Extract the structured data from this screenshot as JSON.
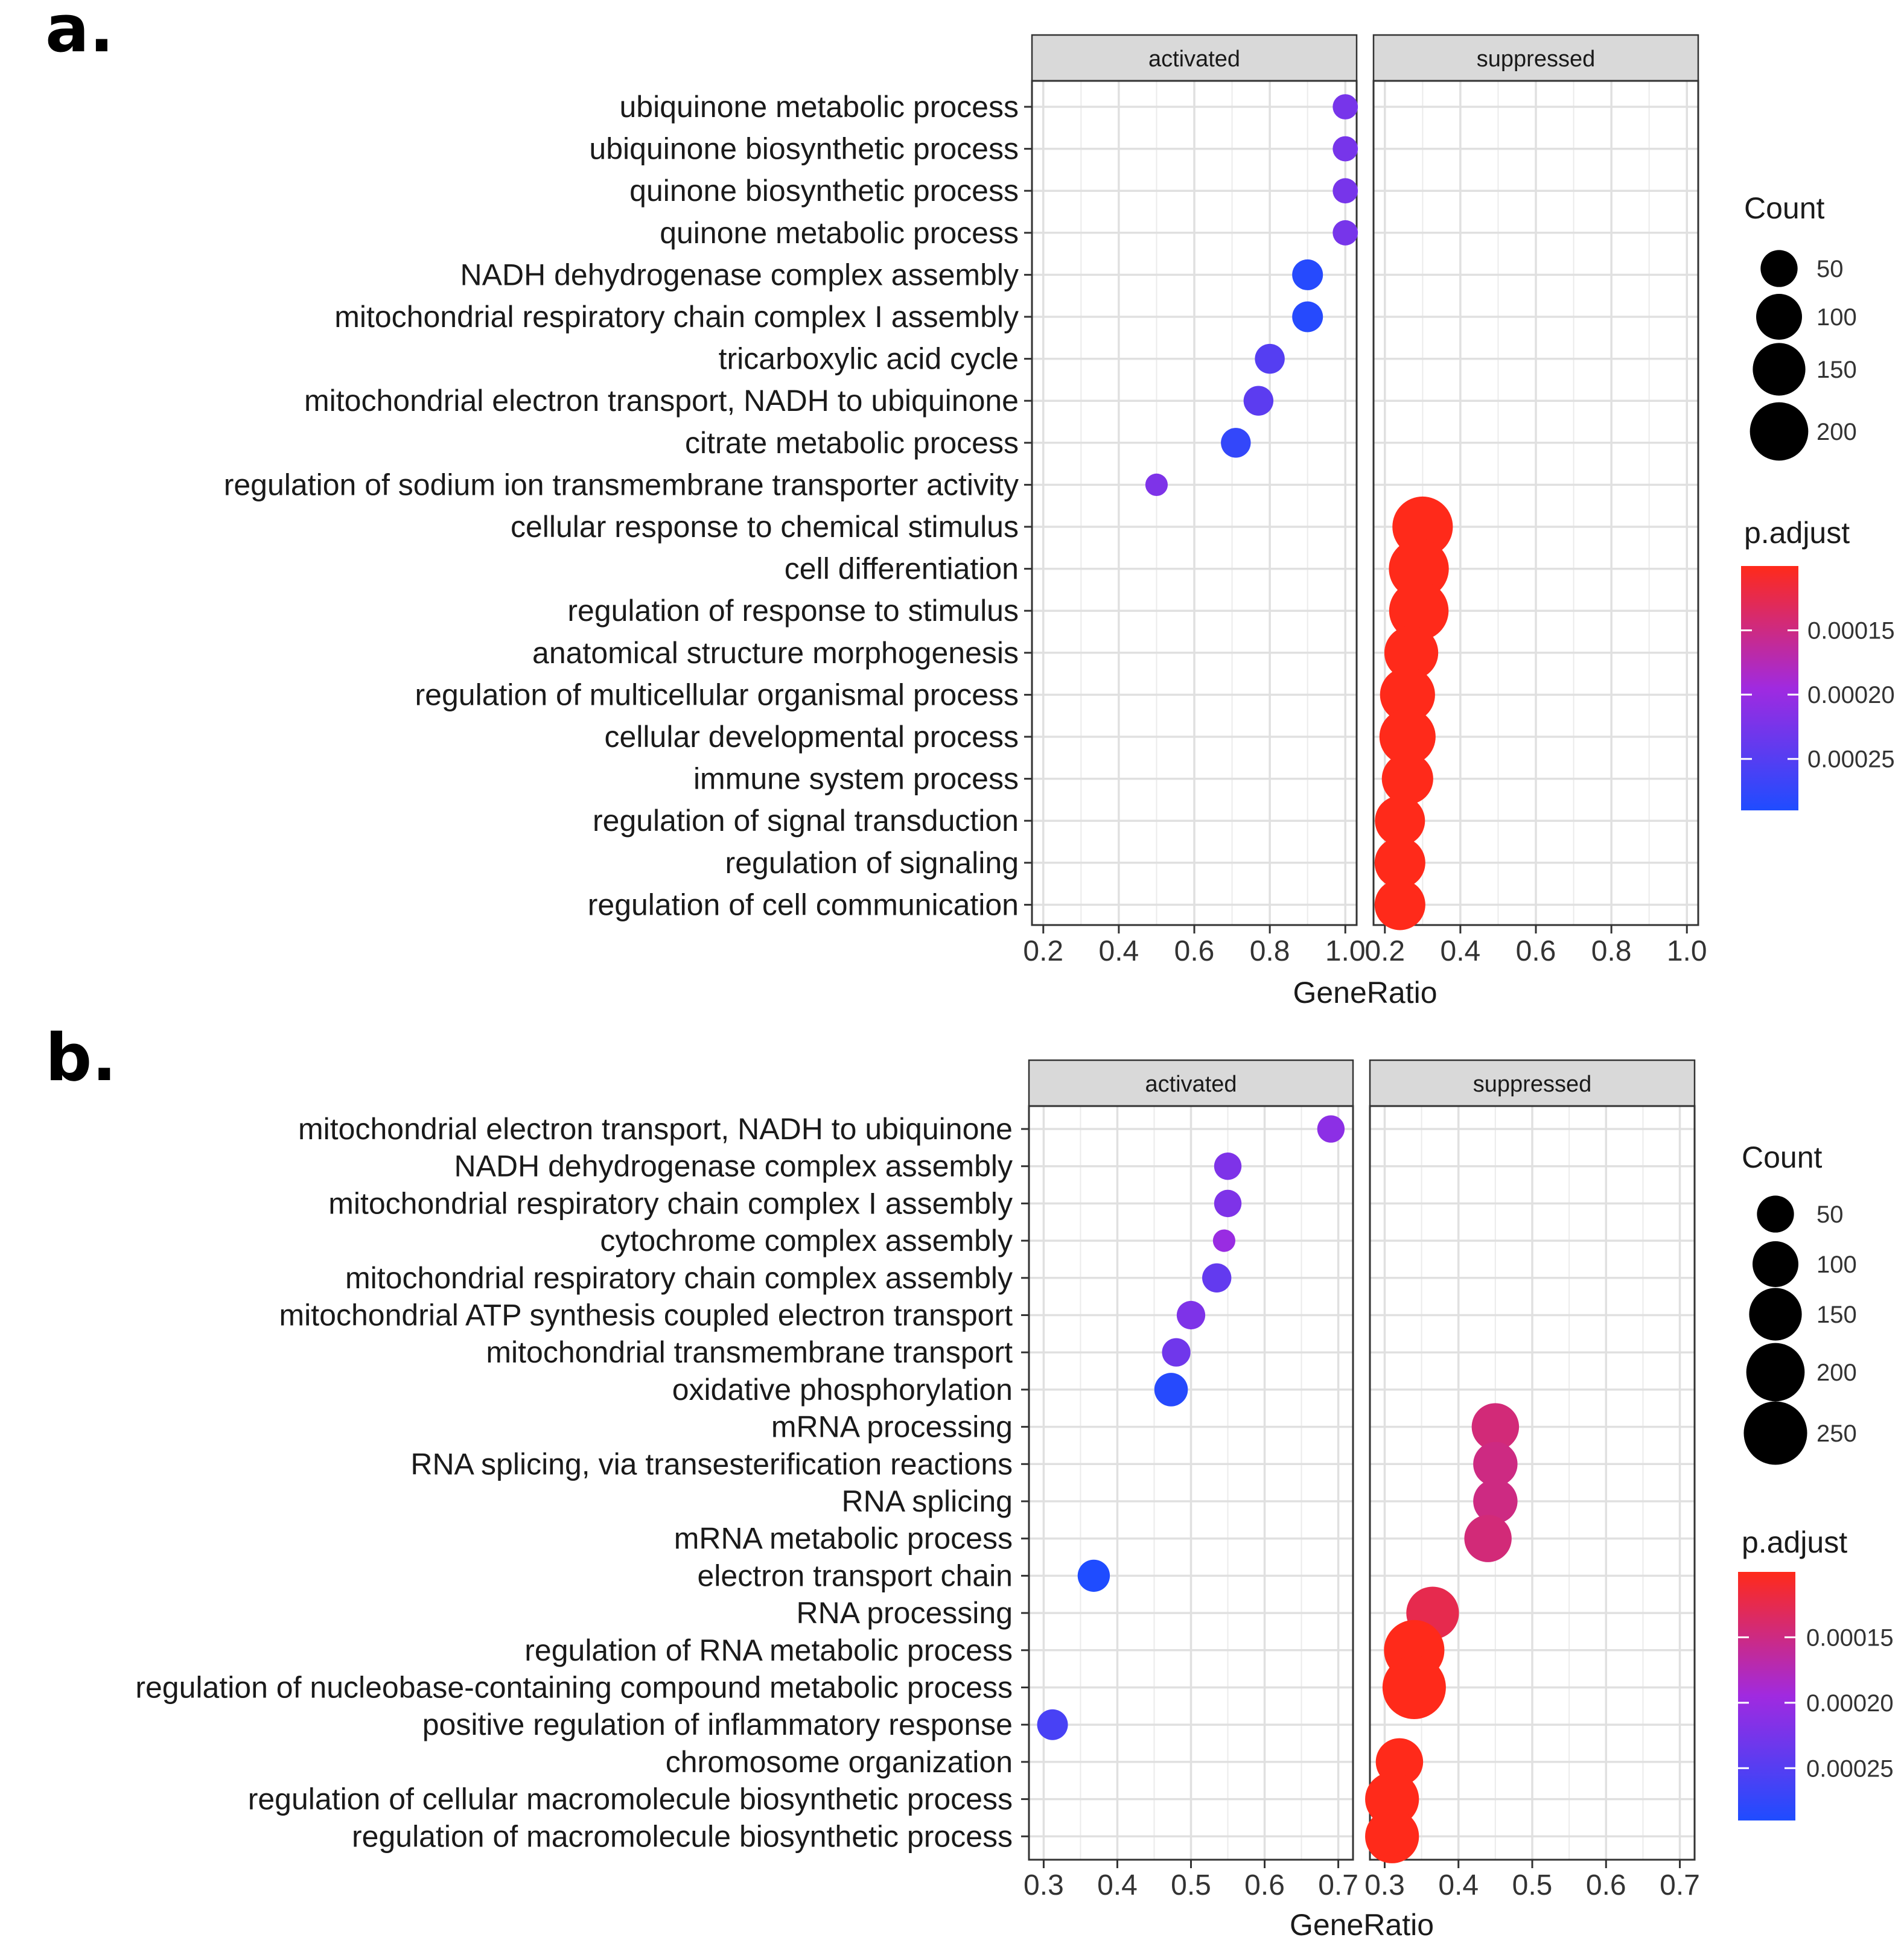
{
  "chart_data": [
    {
      "type": "scatter",
      "panel_label": "a.",
      "facets": [
        "activated",
        "suppressed"
      ],
      "xlabel": "GeneRatio",
      "x_ticks": [
        "0.2",
        "0.4",
        "0.6",
        "0.8",
        "1.0"
      ],
      "xlim": [
        0.17,
        1.03
      ],
      "terms": [
        "ubiquinone metabolic process",
        "ubiquinone biosynthetic process",
        "quinone biosynthetic process",
        "quinone metabolic process",
        "NADH dehydrogenase complex assembly",
        "mitochondrial respiratory chain complex I assembly",
        "tricarboxylic acid cycle",
        "mitochondrial electron transport, NADH to ubiquinone",
        "citrate metabolic process",
        "regulation of sodium ion transmembrane transporter activity",
        "cellular response to chemical stimulus",
        "cell differentiation",
        "regulation of response to stimulus",
        "anatomical structure morphogenesis",
        "regulation of multicellular organismal process",
        "cellular developmental process",
        "immune system process",
        "regulation of signal transduction",
        "regulation of signaling",
        "regulation of cell communication"
      ],
      "points": [
        {
          "term": 0,
          "facet": "activated",
          "gene_ratio": 1.0,
          "count": 10,
          "p_adjust": 0.000225
        },
        {
          "term": 1,
          "facet": "activated",
          "gene_ratio": 1.0,
          "count": 10,
          "p_adjust": 0.000225
        },
        {
          "term": 2,
          "facet": "activated",
          "gene_ratio": 1.0,
          "count": 10,
          "p_adjust": 0.000225
        },
        {
          "term": 3,
          "facet": "activated",
          "gene_ratio": 1.0,
          "count": 10,
          "p_adjust": 0.000225
        },
        {
          "term": 4,
          "facet": "activated",
          "gene_ratio": 0.9,
          "count": 25,
          "p_adjust": 0.000285
        },
        {
          "term": 5,
          "facet": "activated",
          "gene_ratio": 0.9,
          "count": 25,
          "p_adjust": 0.000285
        },
        {
          "term": 6,
          "facet": "activated",
          "gene_ratio": 0.8,
          "count": 22,
          "p_adjust": 0.00025
        },
        {
          "term": 7,
          "facet": "activated",
          "gene_ratio": 0.77,
          "count": 22,
          "p_adjust": 0.000245
        },
        {
          "term": 8,
          "facet": "activated",
          "gene_ratio": 0.71,
          "count": 22,
          "p_adjust": 0.000275
        },
        {
          "term": 9,
          "facet": "activated",
          "gene_ratio": 0.5,
          "count": 5,
          "p_adjust": 0.00022
        },
        {
          "term": 10,
          "facet": "suppressed",
          "gene_ratio": 0.3,
          "count": 220,
          "p_adjust": 0.0001
        },
        {
          "term": 11,
          "facet": "suppressed",
          "gene_ratio": 0.29,
          "count": 215,
          "p_adjust": 0.0001
        },
        {
          "term": 12,
          "facet": "suppressed",
          "gene_ratio": 0.29,
          "count": 210,
          "p_adjust": 0.0001
        },
        {
          "term": 13,
          "facet": "suppressed",
          "gene_ratio": 0.27,
          "count": 160,
          "p_adjust": 0.0001
        },
        {
          "term": 14,
          "facet": "suppressed",
          "gene_ratio": 0.26,
          "count": 170,
          "p_adjust": 0.0001
        },
        {
          "term": 15,
          "facet": "suppressed",
          "gene_ratio": 0.26,
          "count": 180,
          "p_adjust": 0.0001
        },
        {
          "term": 16,
          "facet": "suppressed",
          "gene_ratio": 0.26,
          "count": 140,
          "p_adjust": 0.0001
        },
        {
          "term": 17,
          "facet": "suppressed",
          "gene_ratio": 0.24,
          "count": 130,
          "p_adjust": 0.0001
        },
        {
          "term": 18,
          "facet": "suppressed",
          "gene_ratio": 0.24,
          "count": 135,
          "p_adjust": 0.0001
        },
        {
          "term": 19,
          "facet": "suppressed",
          "gene_ratio": 0.24,
          "count": 135,
          "p_adjust": 0.0001
        }
      ],
      "size_legend": {
        "title": "Count",
        "values": [
          50,
          100,
          150,
          200
        ],
        "labels": [
          "50",
          "100",
          "150",
          "200"
        ]
      },
      "color_legend": {
        "title": "p.adjust",
        "tick_values": [
          0.00015,
          0.0002,
          0.00025
        ],
        "labels": [
          "0.00015",
          "0.00020",
          "0.00025"
        ],
        "range": [
          0.0001,
          0.00029
        ]
      }
    },
    {
      "type": "scatter",
      "panel_label": "b.",
      "facets": [
        "activated",
        "suppressed"
      ],
      "xlabel": "GeneRatio",
      "x_ticks": [
        "0.3",
        "0.4",
        "0.5",
        "0.6",
        "0.7"
      ],
      "xlim": [
        0.28,
        0.72
      ],
      "terms": [
        "mitochondrial electron transport, NADH to ubiquinone",
        "NADH dehydrogenase complex assembly",
        "mitochondrial respiratory chain complex I assembly",
        "cytochrome complex assembly",
        "mitochondrial respiratory chain complex assembly",
        "mitochondrial ATP synthesis coupled electron transport",
        "mitochondrial transmembrane transport",
        "oxidative phosphorylation",
        "mRNA processing",
        "RNA splicing, via transesterification reactions",
        "RNA splicing",
        "mRNA metabolic process",
        "electron transport chain",
        "RNA processing",
        "regulation of RNA metabolic process",
        "regulation of nucleobase-containing compound metabolic process",
        "positive regulation of inflammatory response",
        "chromosome organization",
        "regulation of cellular macromolecule biosynthetic process",
        "regulation of macromolecule biosynthetic process"
      ],
      "points": [
        {
          "term": 0,
          "facet": "activated",
          "gene_ratio": 0.69,
          "count": 15,
          "p_adjust": 0.00021
        },
        {
          "term": 1,
          "facet": "activated",
          "gene_ratio": 0.55,
          "count": 15,
          "p_adjust": 0.00022
        },
        {
          "term": 2,
          "facet": "activated",
          "gene_ratio": 0.55,
          "count": 15,
          "p_adjust": 0.00022
        },
        {
          "term": 3,
          "facet": "activated",
          "gene_ratio": 0.545,
          "count": 5,
          "p_adjust": 0.0002
        },
        {
          "term": 4,
          "facet": "activated",
          "gene_ratio": 0.535,
          "count": 20,
          "p_adjust": 0.00024
        },
        {
          "term": 5,
          "facet": "activated",
          "gene_ratio": 0.5,
          "count": 18,
          "p_adjust": 0.00022
        },
        {
          "term": 6,
          "facet": "activated",
          "gene_ratio": 0.48,
          "count": 18,
          "p_adjust": 0.00023
        },
        {
          "term": 7,
          "facet": "activated",
          "gene_ratio": 0.473,
          "count": 35,
          "p_adjust": 0.000285
        },
        {
          "term": 8,
          "facet": "suppressed",
          "gene_ratio": 0.45,
          "count": 110,
          "p_adjust": 0.000145
        },
        {
          "term": 9,
          "facet": "suppressed",
          "gene_ratio": 0.45,
          "count": 90,
          "p_adjust": 0.00015
        },
        {
          "term": 10,
          "facet": "suppressed",
          "gene_ratio": 0.45,
          "count": 90,
          "p_adjust": 0.00015
        },
        {
          "term": 11,
          "facet": "suppressed",
          "gene_ratio": 0.44,
          "count": 110,
          "p_adjust": 0.000145
        },
        {
          "term": 12,
          "facet": "activated",
          "gene_ratio": 0.368,
          "count": 30,
          "p_adjust": 0.00029
        },
        {
          "term": 13,
          "facet": "suppressed",
          "gene_ratio": 0.365,
          "count": 150,
          "p_adjust": 0.000125
        },
        {
          "term": 14,
          "facet": "suppressed",
          "gene_ratio": 0.34,
          "count": 220,
          "p_adjust": 0.0001
        },
        {
          "term": 15,
          "facet": "suppressed",
          "gene_ratio": 0.34,
          "count": 250,
          "p_adjust": 0.0001
        },
        {
          "term": 16,
          "facet": "activated",
          "gene_ratio": 0.312,
          "count": 25,
          "p_adjust": 0.00026
        },
        {
          "term": 17,
          "facet": "suppressed",
          "gene_ratio": 0.32,
          "count": 110,
          "p_adjust": 0.0001
        },
        {
          "term": 18,
          "facet": "suppressed",
          "gene_ratio": 0.31,
          "count": 160,
          "p_adjust": 0.0001
        },
        {
          "term": 19,
          "facet": "suppressed",
          "gene_ratio": 0.31,
          "count": 160,
          "p_adjust": 0.0001
        }
      ],
      "size_legend": {
        "title": "Count",
        "values": [
          50,
          100,
          150,
          200,
          250
        ],
        "labels": [
          "50",
          "100",
          "150",
          "200",
          "250"
        ]
      },
      "color_legend": {
        "title": "p.adjust",
        "tick_values": [
          0.00015,
          0.0002,
          0.00025
        ],
        "labels": [
          "0.00015",
          "0.00020",
          "0.00025"
        ],
        "range": [
          0.0001,
          0.00029
        ]
      }
    }
  ],
  "colors": {
    "low_p": "#FF2A1A",
    "mid_p": "#A02AE0",
    "high_p": "#1F4CFF",
    "strip_fill": "#D9D9D9",
    "grid": "#EBEBEB",
    "panel_border": "#333333"
  }
}
